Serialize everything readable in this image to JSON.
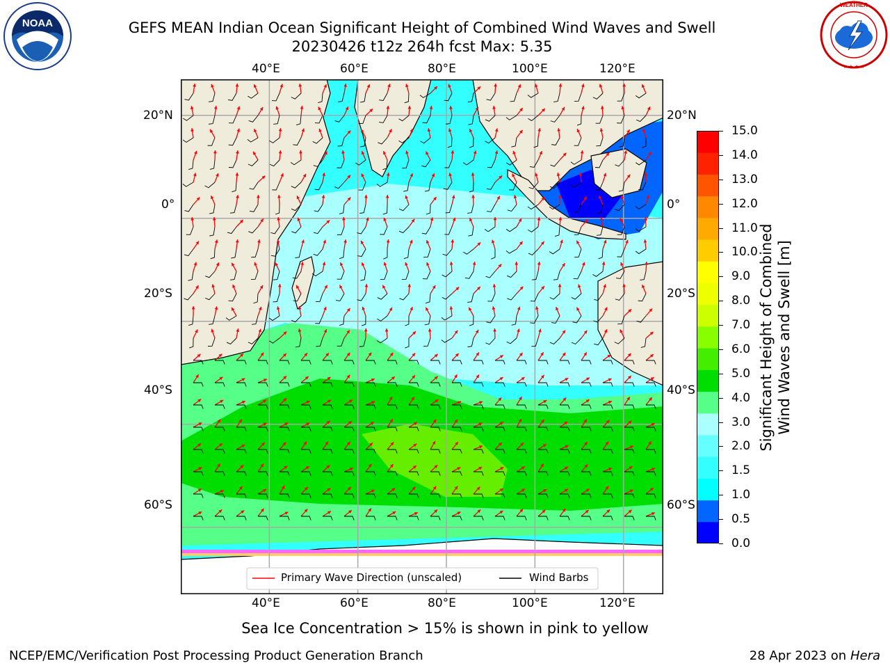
{
  "header": {
    "title_line1": "GEFS MEAN Indian Ocean Significant Height of Combined Wind Waves and Swell",
    "title_line2": "20230426 t12z 264h fcst   Max: 5.35"
  },
  "logos": {
    "left": {
      "name": "noaa-logo",
      "center_text": "NOAA",
      "ring_text": "NATIONAL OCEANIC AND ATMOSPHERIC ADMINISTRATION · U.S. DEPARTMENT OF COMMERCE"
    },
    "right": {
      "name": "nws-logo",
      "ring_text": "NATIONAL WEATHER SERVICE"
    }
  },
  "map": {
    "lon_ticks": [
      "40°E",
      "60°E",
      "80°E",
      "100°E",
      "120°E"
    ],
    "lat_ticks": [
      "20°N",
      "0°",
      "20°S",
      "40°S",
      "60°S"
    ],
    "extent": {
      "lon_min": 20,
      "lon_max": 129,
      "lat_min": -73,
      "lat_max": 27
    },
    "lon_grid": [
      40,
      60,
      80,
      100,
      120
    ],
    "lat_grid": [
      20,
      0,
      -20,
      -40,
      -60
    ],
    "land_color": "#efecdc",
    "ice_note": "Sea Ice Concentration > 15% is shown in pink to yellow"
  },
  "legend": {
    "items": [
      {
        "label": "Primary Wave Direction (unscaled)",
        "color": "#ff0000"
      },
      {
        "label": "Wind Barbs",
        "color": "#000000"
      }
    ]
  },
  "colorbar": {
    "label_line1": "Significant Height of Combined",
    "label_line2": "Wind Waves and Swell [m]",
    "ticks": [
      "15.0",
      "14.0",
      "13.0",
      "12.0",
      "11.0",
      "10.0",
      "9.0",
      "8.0",
      "7.0",
      "6.0",
      "5.0",
      "4.0",
      "3.0",
      "2.0",
      "1.5",
      "1.0",
      "0.5",
      "0.0"
    ],
    "colors": [
      "#0000ff",
      "#0066ff",
      "#00ffff",
      "#33ffff",
      "#66ffff",
      "#aaffff",
      "#55ff88",
      "#00dd00",
      "#44ee00",
      "#88ff00",
      "#ccff00",
      "#eeff00",
      "#ffff00",
      "#ffcc00",
      "#ffaa00",
      "#ff8800",
      "#ff5500",
      "#ff2200",
      "#ff0000"
    ]
  },
  "footer": {
    "left": "NCEP/EMC/Verification Post Processing Product Generation Branch",
    "right_prefix": "28 Apr 2023 on ",
    "right_italic": "Hera"
  }
}
